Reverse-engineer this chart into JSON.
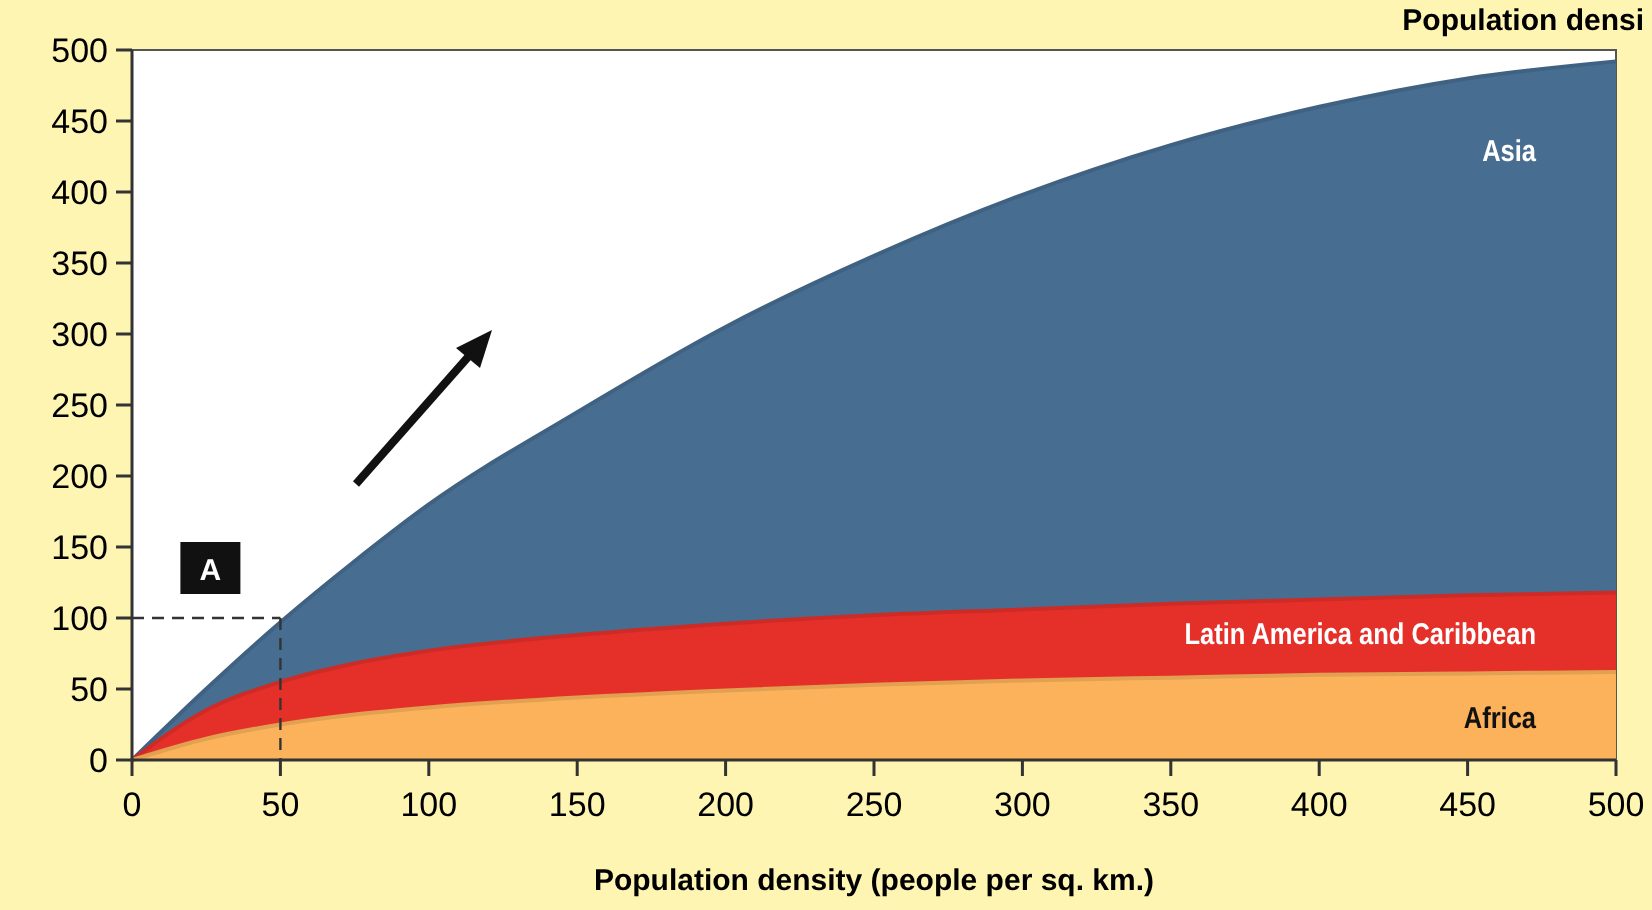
{
  "chart_data": {
    "type": "area",
    "title": "Population densi",
    "xlabel": "Population density (people per sq. km.)",
    "x": [
      0,
      25,
      50,
      75,
      100,
      150,
      200,
      250,
      300,
      350,
      400,
      450,
      500
    ],
    "series": [
      {
        "name": "Asia",
        "color": "#476d91",
        "values": [
          0,
          50,
          97,
          140,
          180,
          245,
          305,
          355,
          398,
          433,
          460,
          480,
          492
        ]
      },
      {
        "name": "Latin America and Caribbean",
        "color": "#e5302a",
        "values": [
          0,
          35,
          55,
          68,
          77,
          88,
          96,
          102,
          106,
          110,
          113,
          116,
          118
        ]
      },
      {
        "name": "Africa",
        "color": "#fbb25a",
        "values": [
          0,
          15,
          25,
          32,
          37,
          44,
          49,
          53,
          56,
          58,
          60,
          61,
          62
        ]
      }
    ],
    "annotations": [
      {
        "text": "A",
        "x": 50,
        "y": 100
      }
    ],
    "xlim": [
      0,
      500
    ],
    "ylim": [
      0,
      500
    ],
    "xticks": [
      0,
      50,
      100,
      150,
      200,
      250,
      300,
      350,
      400,
      450,
      500
    ],
    "yticks": [
      0,
      50,
      100,
      150,
      200,
      250,
      300,
      350,
      400,
      450,
      500
    ],
    "grid": false
  }
}
